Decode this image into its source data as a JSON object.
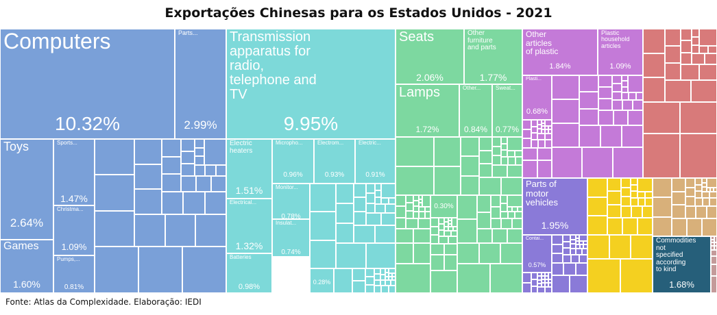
{
  "chart_data": {
    "type": "treemap",
    "title": "Exportações Chinesas para os Estados Unidos - 2021",
    "source": "Fonte: Atlas da Complexidade. Elaboração: IEDI",
    "colors": {
      "machinery": "#7aa0d8",
      "electronics": "#7dd9d9",
      "furniture": "#7dd8a0",
      "plastics": "#c47ad8",
      "textiles": "#d87a7a",
      "vehicles": "#8a7ad8",
      "metals": "#f4d020",
      "other": "#d8b07a",
      "unspecified": "#265f7a",
      "minor": "#c49a9a"
    },
    "items": [
      {
        "label": "Computers",
        "value": "10.32%",
        "group": "machinery"
      },
      {
        "label": "Parts...",
        "value": "2.99%",
        "group": "machinery"
      },
      {
        "label": "Toys",
        "value": "2.64%",
        "group": "machinery"
      },
      {
        "label": "Games",
        "value": "1.60%",
        "group": "machinery"
      },
      {
        "label": "Sports...",
        "value": "1.47%",
        "group": "machinery"
      },
      {
        "label": "Christma...",
        "value": "1.09%",
        "group": "machinery"
      },
      {
        "label": "Pumps,...",
        "value": "0.81%",
        "group": "machinery"
      },
      {
        "label": "Transmission\napparatus for\nradio,\ntelephone and\nTV",
        "value": "9.95%",
        "group": "electronics"
      },
      {
        "label": "Electric\nheaters",
        "value": "1.51%",
        "group": "electronics"
      },
      {
        "label": "Electrical...",
        "value": "1.32%",
        "group": "electronics"
      },
      {
        "label": "Batteries",
        "value": "0.98%",
        "group": "electronics"
      },
      {
        "label": "Micropho...",
        "value": "0.96%",
        "group": "electronics"
      },
      {
        "label": "Electrom...",
        "value": "0.93%",
        "group": "electronics"
      },
      {
        "label": "Electric...",
        "value": "0.91%",
        "group": "electronics"
      },
      {
        "label": "Monitor...",
        "value": "0.78%",
        "group": "electronics"
      },
      {
        "label": "Insulat...",
        "value": "0.74%",
        "group": "electronics"
      },
      {
        "label": "",
        "value": "0.28%",
        "group": "electronics"
      },
      {
        "label": "Seats",
        "value": "2.06%",
        "group": "furniture"
      },
      {
        "label": "Other\nfurniture\nand parts",
        "value": "1.77%",
        "group": "furniture"
      },
      {
        "label": "Lamps",
        "value": "1.72%",
        "group": "furniture"
      },
      {
        "label": "Other...",
        "value": "0.84%",
        "group": "furniture"
      },
      {
        "label": "Sweat...",
        "value": "0.77%",
        "group": "furniture"
      },
      {
        "label": "",
        "value": "0.30%",
        "group": "furniture"
      },
      {
        "label": "Other\narticles\nof plastic",
        "value": "1.84%",
        "group": "plastics"
      },
      {
        "label": "Plastic\nhousehold\narticles",
        "value": "1.09%",
        "group": "plastics"
      },
      {
        "label": "Plasti...",
        "value": "0.68%",
        "group": "plastics"
      },
      {
        "label": "Parts of\nmotor\nvehicles",
        "value": "1.95%",
        "group": "vehicles"
      },
      {
        "label": "Contai...",
        "value": "0.57%",
        "group": "vehicles"
      },
      {
        "label": "Commodities\nnot\nspecified\naccording\nto kind",
        "value": "1.68%",
        "group": "unspecified"
      }
    ]
  }
}
